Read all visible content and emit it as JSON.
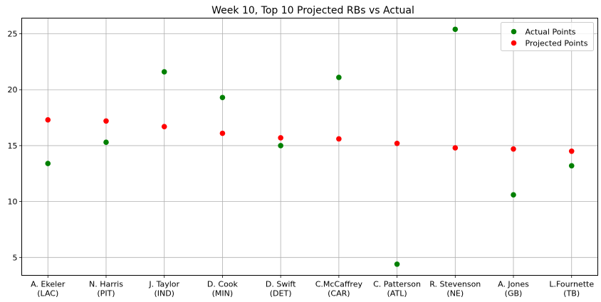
{
  "chart_data": {
    "type": "scatter",
    "title": "Week 10, Top 10 Projected RBs vs Actual",
    "xlabel": "",
    "ylabel": "",
    "categories": [
      [
        "A. Ekeler",
        "(LAC)"
      ],
      [
        "N. Harris",
        "(PIT)"
      ],
      [
        "J. Taylor",
        "(IND)"
      ],
      [
        "D. Cook",
        "(MIN)"
      ],
      [
        "D. Swift",
        "(DET)"
      ],
      [
        "C.McCaffrey",
        "(CAR)"
      ],
      [
        "C. Patterson",
        "(ATL)"
      ],
      [
        "R. Stevenson",
        "(NE)"
      ],
      [
        "A. Jones",
        "(GB)"
      ],
      [
        "L.Fournette",
        "(TB)"
      ]
    ],
    "ylim": [
      3.4,
      26.4
    ],
    "yticks": [
      5,
      10,
      15,
      20,
      25
    ],
    "grid": true,
    "legend_position": "top-right",
    "series": [
      {
        "name": "Actual Points",
        "color": "#008000",
        "values": [
          13.4,
          15.3,
          21.6,
          19.3,
          15.0,
          21.1,
          4.4,
          25.4,
          10.6,
          13.2
        ]
      },
      {
        "name": "Projected Points",
        "color": "#ff0000",
        "values": [
          17.3,
          17.2,
          16.7,
          16.1,
          15.7,
          15.6,
          15.2,
          14.8,
          14.7,
          14.5
        ]
      }
    ]
  }
}
